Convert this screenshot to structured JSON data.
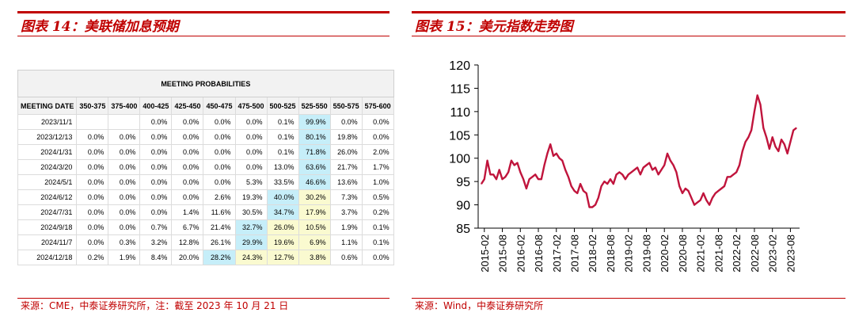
{
  "left": {
    "title": "图表 14：美联储加息预期",
    "source": "来源：CME，中泰证券研究所，注：截至 2023 年 10 月 21 日",
    "table": {
      "main_header": "MEETING PROBABILITIES",
      "columns": [
        "MEETING DATE",
        "350-375",
        "375-400",
        "400-425",
        "425-450",
        "450-475",
        "475-500",
        "500-525",
        "525-550",
        "550-575",
        "575-600"
      ],
      "rows": [
        {
          "date": "2023/11/1",
          "cells": [
            "",
            "",
            "0.0%",
            "0.0%",
            "0.0%",
            "0.0%",
            "0.1%",
            "99.9%",
            "0.0%",
            "0.0%"
          ],
          "hl": [
            "",
            "",
            "",
            "",
            "",
            "",
            "",
            "b",
            "",
            ""
          ]
        },
        {
          "date": "2023/12/13",
          "cells": [
            "0.0%",
            "0.0%",
            "0.0%",
            "0.0%",
            "0.0%",
            "0.0%",
            "0.1%",
            "80.1%",
            "19.8%",
            "0.0%"
          ],
          "hl": [
            "",
            "",
            "",
            "",
            "",
            "",
            "",
            "b",
            "",
            ""
          ]
        },
        {
          "date": "2024/1/31",
          "cells": [
            "0.0%",
            "0.0%",
            "0.0%",
            "0.0%",
            "0.0%",
            "0.0%",
            "0.1%",
            "71.8%",
            "26.0%",
            "2.0%"
          ],
          "hl": [
            "",
            "",
            "",
            "",
            "",
            "",
            "",
            "b",
            "",
            ""
          ]
        },
        {
          "date": "2024/3/20",
          "cells": [
            "0.0%",
            "0.0%",
            "0.0%",
            "0.0%",
            "0.0%",
            "0.0%",
            "13.0%",
            "63.6%",
            "21.7%",
            "1.7%"
          ],
          "hl": [
            "",
            "",
            "",
            "",
            "",
            "",
            "",
            "b",
            "",
            ""
          ]
        },
        {
          "date": "2024/5/1",
          "cells": [
            "0.0%",
            "0.0%",
            "0.0%",
            "0.0%",
            "0.0%",
            "5.3%",
            "33.5%",
            "46.6%",
            "13.6%",
            "1.0%"
          ],
          "hl": [
            "",
            "",
            "",
            "",
            "",
            "",
            "",
            "b",
            "",
            ""
          ]
        },
        {
          "date": "2024/6/12",
          "cells": [
            "0.0%",
            "0.0%",
            "0.0%",
            "0.0%",
            "2.6%",
            "19.3%",
            "40.0%",
            "30.2%",
            "7.3%",
            "0.5%"
          ],
          "hl": [
            "",
            "",
            "",
            "",
            "",
            "",
            "b",
            "y",
            "",
            ""
          ]
        },
        {
          "date": "2024/7/31",
          "cells": [
            "0.0%",
            "0.0%",
            "0.0%",
            "1.4%",
            "11.6%",
            "30.5%",
            "34.7%",
            "17.9%",
            "3.7%",
            "0.2%"
          ],
          "hl": [
            "",
            "",
            "",
            "",
            "",
            "",
            "b",
            "y",
            "",
            ""
          ]
        },
        {
          "date": "2024/9/18",
          "cells": [
            "0.0%",
            "0.0%",
            "0.7%",
            "6.7%",
            "21.4%",
            "32.7%",
            "26.0%",
            "10.5%",
            "1.9%",
            "0.1%"
          ],
          "hl": [
            "",
            "",
            "",
            "",
            "",
            "b",
            "y",
            "y",
            "",
            ""
          ]
        },
        {
          "date": "2024/11/7",
          "cells": [
            "0.0%",
            "0.3%",
            "3.2%",
            "12.8%",
            "26.1%",
            "29.9%",
            "19.6%",
            "6.9%",
            "1.1%",
            "0.1%"
          ],
          "hl": [
            "",
            "",
            "",
            "",
            "",
            "b",
            "y",
            "y",
            "",
            ""
          ]
        },
        {
          "date": "2024/12/18",
          "cells": [
            "0.2%",
            "1.9%",
            "8.4%",
            "20.0%",
            "28.2%",
            "24.3%",
            "12.7%",
            "3.8%",
            "0.6%",
            "0.0%"
          ],
          "hl": [
            "",
            "",
            "",
            "",
            "b",
            "y",
            "y",
            "y",
            "",
            ""
          ]
        }
      ],
      "colors": {
        "blue": "#c6eef9",
        "yellow": "#fafad0"
      }
    }
  },
  "right": {
    "title": "图表 15：美元指数走势图",
    "source": "来源：Wind，中泰证券研究所"
  },
  "chart_data": {
    "type": "line",
    "title": "",
    "xlabel": "",
    "ylabel": "",
    "ylim": [
      85,
      120
    ],
    "yticks": [
      85,
      90,
      95,
      100,
      105,
      110,
      115,
      120
    ],
    "xticks": [
      "2015-02",
      "2015-08",
      "2016-02",
      "2016-08",
      "2017-02",
      "2017-08",
      "2018-02",
      "2018-08",
      "2019-02",
      "2019-08",
      "2020-02",
      "2020-08",
      "2021-02",
      "2021-08",
      "2022-02",
      "2022-08",
      "2023-02",
      "2023-08"
    ],
    "grid": false,
    "line_color": "#c0143c",
    "series": [
      {
        "x": [
          "2015-01",
          "2015-02",
          "2015-03",
          "2015-04",
          "2015-05",
          "2015-06",
          "2015-07",
          "2015-08",
          "2015-09",
          "2015-10",
          "2015-11",
          "2015-12",
          "2016-01",
          "2016-02",
          "2016-03",
          "2016-04",
          "2016-05",
          "2016-06",
          "2016-07",
          "2016-08",
          "2016-09",
          "2016-10",
          "2016-11",
          "2016-12",
          "2017-01",
          "2017-02",
          "2017-03",
          "2017-04",
          "2017-05",
          "2017-06",
          "2017-07",
          "2017-08",
          "2017-09",
          "2017-10",
          "2017-11",
          "2017-12",
          "2018-01",
          "2018-02",
          "2018-03",
          "2018-04",
          "2018-05",
          "2018-06",
          "2018-07",
          "2018-08",
          "2018-09",
          "2018-10",
          "2018-11",
          "2018-12",
          "2019-01",
          "2019-02",
          "2019-03",
          "2019-04",
          "2019-05",
          "2019-06",
          "2019-07",
          "2019-08",
          "2019-09",
          "2019-10",
          "2019-11",
          "2019-12",
          "2020-01",
          "2020-02",
          "2020-03",
          "2020-04",
          "2020-05",
          "2020-06",
          "2020-07",
          "2020-08",
          "2020-09",
          "2020-10",
          "2020-11",
          "2020-12",
          "2021-01",
          "2021-02",
          "2021-03",
          "2021-04",
          "2021-05",
          "2021-06",
          "2021-07",
          "2021-08",
          "2021-09",
          "2021-10",
          "2021-11",
          "2021-12",
          "2022-01",
          "2022-02",
          "2022-03",
          "2022-04",
          "2022-05",
          "2022-06",
          "2022-07",
          "2022-08",
          "2022-09",
          "2022-10",
          "2022-11",
          "2022-12",
          "2023-01",
          "2023-02",
          "2023-03",
          "2023-04",
          "2023-05",
          "2023-06",
          "2023-07",
          "2023-08",
          "2023-09",
          "2023-10"
        ],
        "values": [
          94.5,
          95.5,
          99.5,
          96.5,
          96.5,
          95.5,
          97.5,
          95.5,
          96.0,
          97.0,
          99.5,
          98.5,
          99.0,
          97.0,
          95.5,
          93.5,
          95.5,
          96.0,
          96.5,
          95.5,
          95.5,
          98.5,
          101.0,
          103.0,
          100.5,
          101.0,
          100.0,
          99.5,
          97.5,
          96.0,
          94.0,
          93.0,
          92.5,
          94.5,
          93.0,
          92.5,
          89.5,
          89.5,
          90.0,
          91.5,
          94.0,
          95.0,
          94.5,
          95.5,
          94.5,
          96.5,
          97.0,
          96.5,
          95.5,
          96.5,
          97.0,
          97.5,
          98.0,
          96.5,
          98.0,
          98.5,
          99.0,
          97.5,
          98.0,
          96.5,
          97.5,
          98.5,
          101.0,
          99.5,
          98.5,
          97.0,
          94.0,
          92.5,
          93.5,
          93.0,
          91.5,
          90.0,
          90.5,
          91.0,
          92.5,
          91.0,
          90.0,
          91.5,
          92.5,
          93.0,
          93.5,
          94.0,
          96.0,
          96.0,
          96.5,
          97.0,
          98.5,
          101.5,
          103.5,
          104.5,
          106.0,
          110.0,
          113.5,
          111.5,
          106.5,
          104.5,
          102.0,
          104.5,
          102.5,
          101.5,
          104.0,
          103.0,
          101.0,
          103.5,
          106.0,
          106.5
        ]
      }
    ]
  }
}
